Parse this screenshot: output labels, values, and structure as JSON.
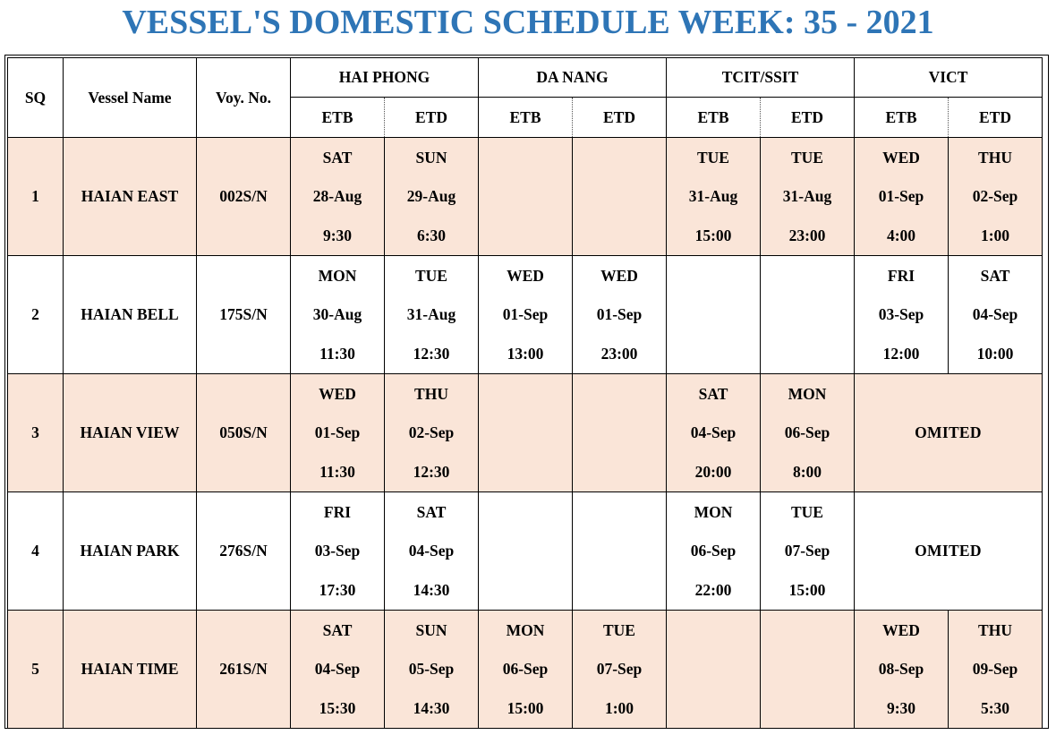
{
  "title": "VESSEL'S DOMESTIC SCHEDULE WEEK: 35 - 2021",
  "colors": {
    "title": "#2e75b6",
    "row_shade": "#fae5d8",
    "border": "#000000"
  },
  "headers": {
    "sq": "SQ",
    "vessel": "Vessel Name",
    "voy": "Voy. No.",
    "ports": [
      "HAI PHONG",
      "DA NANG",
      "TCIT/SSIT",
      "VICT"
    ],
    "etb": "ETB",
    "etd": "ETD"
  },
  "rows": [
    {
      "sq": "1",
      "vessel": "HAIAN EAST",
      "voy": "002S/N",
      "hp_etb": {
        "day": "SAT",
        "date": "28-Aug",
        "time": "9:30"
      },
      "hp_etd": {
        "day": "SUN",
        "date": "29-Aug",
        "time": "6:30"
      },
      "dn_etb": {
        "day": "",
        "date": "",
        "time": ""
      },
      "dn_etd": {
        "day": "",
        "date": "",
        "time": ""
      },
      "tc_etb": {
        "day": "TUE",
        "date": "31-Aug",
        "time": "15:00"
      },
      "tc_etd": {
        "day": "TUE",
        "date": "31-Aug",
        "time": "23:00"
      },
      "vi_etb": {
        "day": "WED",
        "date": "01-Sep",
        "time": "4:00"
      },
      "vi_etd": {
        "day": "THU",
        "date": "02-Sep",
        "time": "1:00"
      }
    },
    {
      "sq": "2",
      "vessel": "HAIAN BELL",
      "voy": "175S/N",
      "hp_etb": {
        "day": "MON",
        "date": "30-Aug",
        "time": "11:30"
      },
      "hp_etd": {
        "day": "TUE",
        "date": "31-Aug",
        "time": "12:30"
      },
      "dn_etb": {
        "day": "WED",
        "date": "01-Sep",
        "time": "13:00"
      },
      "dn_etd": {
        "day": "WED",
        "date": "01-Sep",
        "time": "23:00"
      },
      "tc_etb": {
        "day": "",
        "date": "",
        "time": ""
      },
      "tc_etd": {
        "day": "",
        "date": "",
        "time": ""
      },
      "vi_etb": {
        "day": "FRI",
        "date": "03-Sep",
        "time": "12:00"
      },
      "vi_etd": {
        "day": "SAT",
        "date": "04-Sep",
        "time": "10:00"
      }
    },
    {
      "sq": "3",
      "vessel": "HAIAN VIEW",
      "voy": "050S/N",
      "hp_etb": {
        "day": "WED",
        "date": "01-Sep",
        "time": "11:30"
      },
      "hp_etd": {
        "day": "THU",
        "date": "02-Sep",
        "time": "12:30"
      },
      "dn_etb": {
        "day": "",
        "date": "",
        "time": ""
      },
      "dn_etd": {
        "day": "",
        "date": "",
        "time": ""
      },
      "tc_etb": {
        "day": "SAT",
        "date": "04-Sep",
        "time": "20:00"
      },
      "tc_etd": {
        "day": "MON",
        "date": "06-Sep",
        "time": "8:00"
      },
      "vi_omit": "OMITED"
    },
    {
      "sq": "4",
      "vessel": "HAIAN PARK",
      "voy": "276S/N",
      "hp_etb": {
        "day": "FRI",
        "date": "03-Sep",
        "time": "17:30"
      },
      "hp_etd": {
        "day": "SAT",
        "date": "04-Sep",
        "time": "14:30"
      },
      "dn_etb": {
        "day": "",
        "date": "",
        "time": ""
      },
      "dn_etd": {
        "day": "",
        "date": "",
        "time": ""
      },
      "tc_etb": {
        "day": "MON",
        "date": "06-Sep",
        "time": "22:00"
      },
      "tc_etd": {
        "day": "TUE",
        "date": "07-Sep",
        "time": "15:00"
      },
      "vi_omit": "OMITED"
    },
    {
      "sq": "5",
      "vessel": "HAIAN TIME",
      "voy": "261S/N",
      "hp_etb": {
        "day": "SAT",
        "date": "04-Sep",
        "time": "15:30"
      },
      "hp_etd": {
        "day": "SUN",
        "date": "05-Sep",
        "time": "14:30"
      },
      "dn_etb": {
        "day": "MON",
        "date": "06-Sep",
        "time": "15:00"
      },
      "dn_etd": {
        "day": "TUE",
        "date": "07-Sep",
        "time": "1:00"
      },
      "tc_etb": {
        "day": "",
        "date": "",
        "time": ""
      },
      "tc_etd": {
        "day": "",
        "date": "",
        "time": ""
      },
      "vi_etb": {
        "day": "WED",
        "date": "08-Sep",
        "time": "9:30"
      },
      "vi_etd": {
        "day": "THU",
        "date": "09-Sep",
        "time": "5:30"
      }
    }
  ]
}
